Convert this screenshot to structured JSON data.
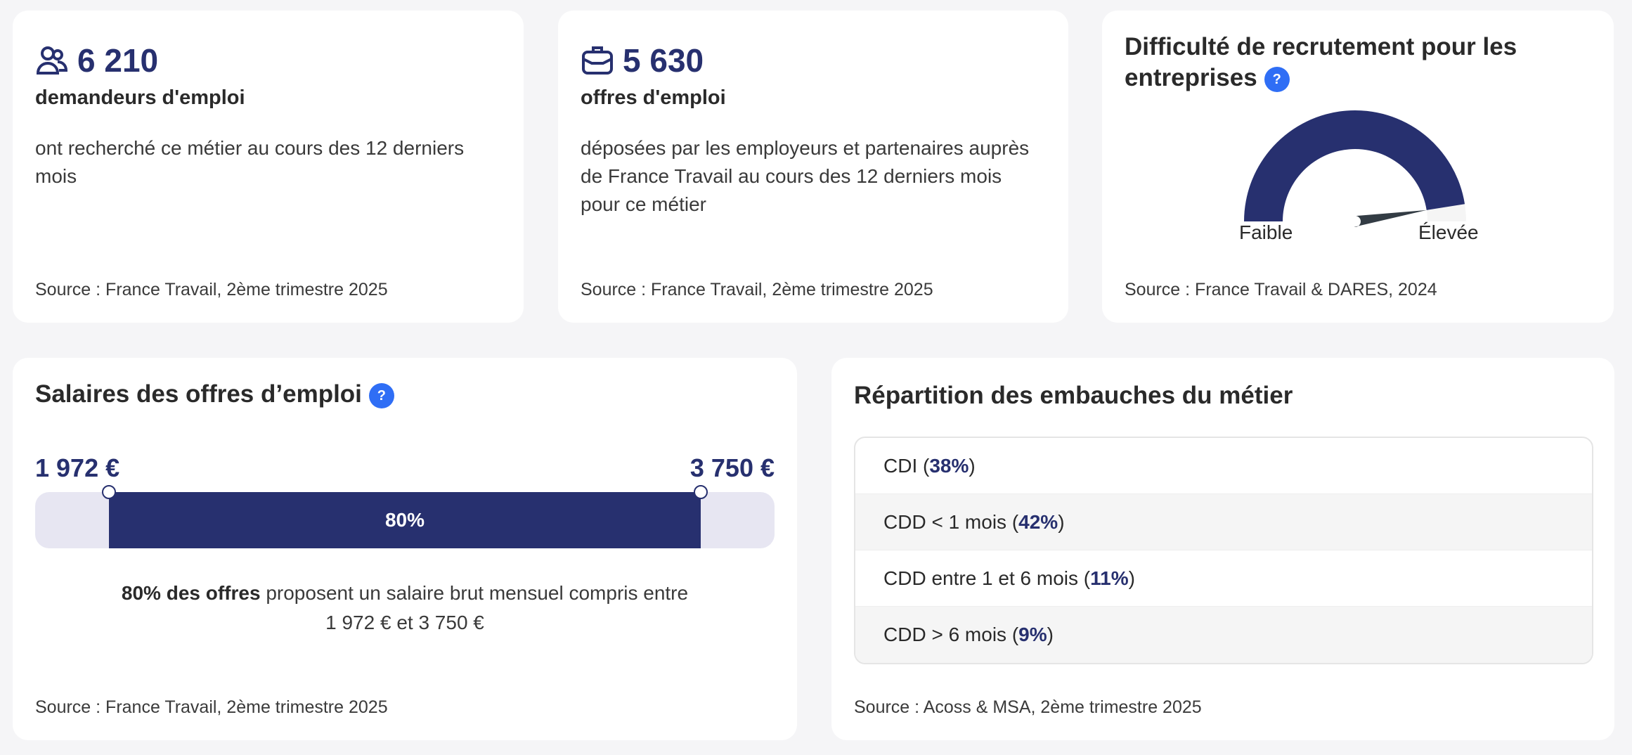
{
  "job_seekers": {
    "icon": "users-icon",
    "value": "6 210",
    "label": "demandeurs d'emploi",
    "description": "ont recherché ce métier au cours des 12 derniers mois",
    "source": "Source : France Travail, 2ème trimestre 2025"
  },
  "job_offers": {
    "icon": "briefcase-icon",
    "value": "5 630",
    "label": "offres d'emploi",
    "description": "déposées par les employeurs et partenaires auprès de France Travail au cours des 12 derniers mois pour ce métier",
    "source": "Source : France Travail, 2ème trimestre 2025"
  },
  "difficulty": {
    "title": "Difficulté de recrutement pour les entreprises",
    "help": "?",
    "gauge_level": 0.95,
    "low_label": "Faible",
    "high_label": "Élevée",
    "source": "Source : France Travail & DARES, 2024",
    "colors": {
      "fill": "#27306f",
      "track": "#f5f5f5",
      "needle": "#333c44"
    }
  },
  "salaries": {
    "title": "Salaires des offres d’emploi",
    "help": "?",
    "min": "1 972 €",
    "max": "3 750 €",
    "percent": "80%",
    "range_start": 0.1,
    "range_end": 0.9,
    "summary_bold": "80% des offres",
    "summary_rest": " proposent un salaire brut mensuel compris entre 1 972 € et 3 750 €",
    "source": "Source : France Travail, 2ème trimestre 2025"
  },
  "hires": {
    "title": "Répartition des embauches du métier",
    "rows": [
      {
        "label": "CDI (",
        "pct": "38%"
      },
      {
        "label": "CDD < 1 mois (",
        "pct": "42%"
      },
      {
        "label": "CDD entre 1 et 6 mois (",
        "pct": "11%"
      },
      {
        "label": "CDD > 6 mois (",
        "pct": "9%"
      }
    ],
    "source": "Source : Acoss & MSA, 2ème trimestre 2025"
  }
}
